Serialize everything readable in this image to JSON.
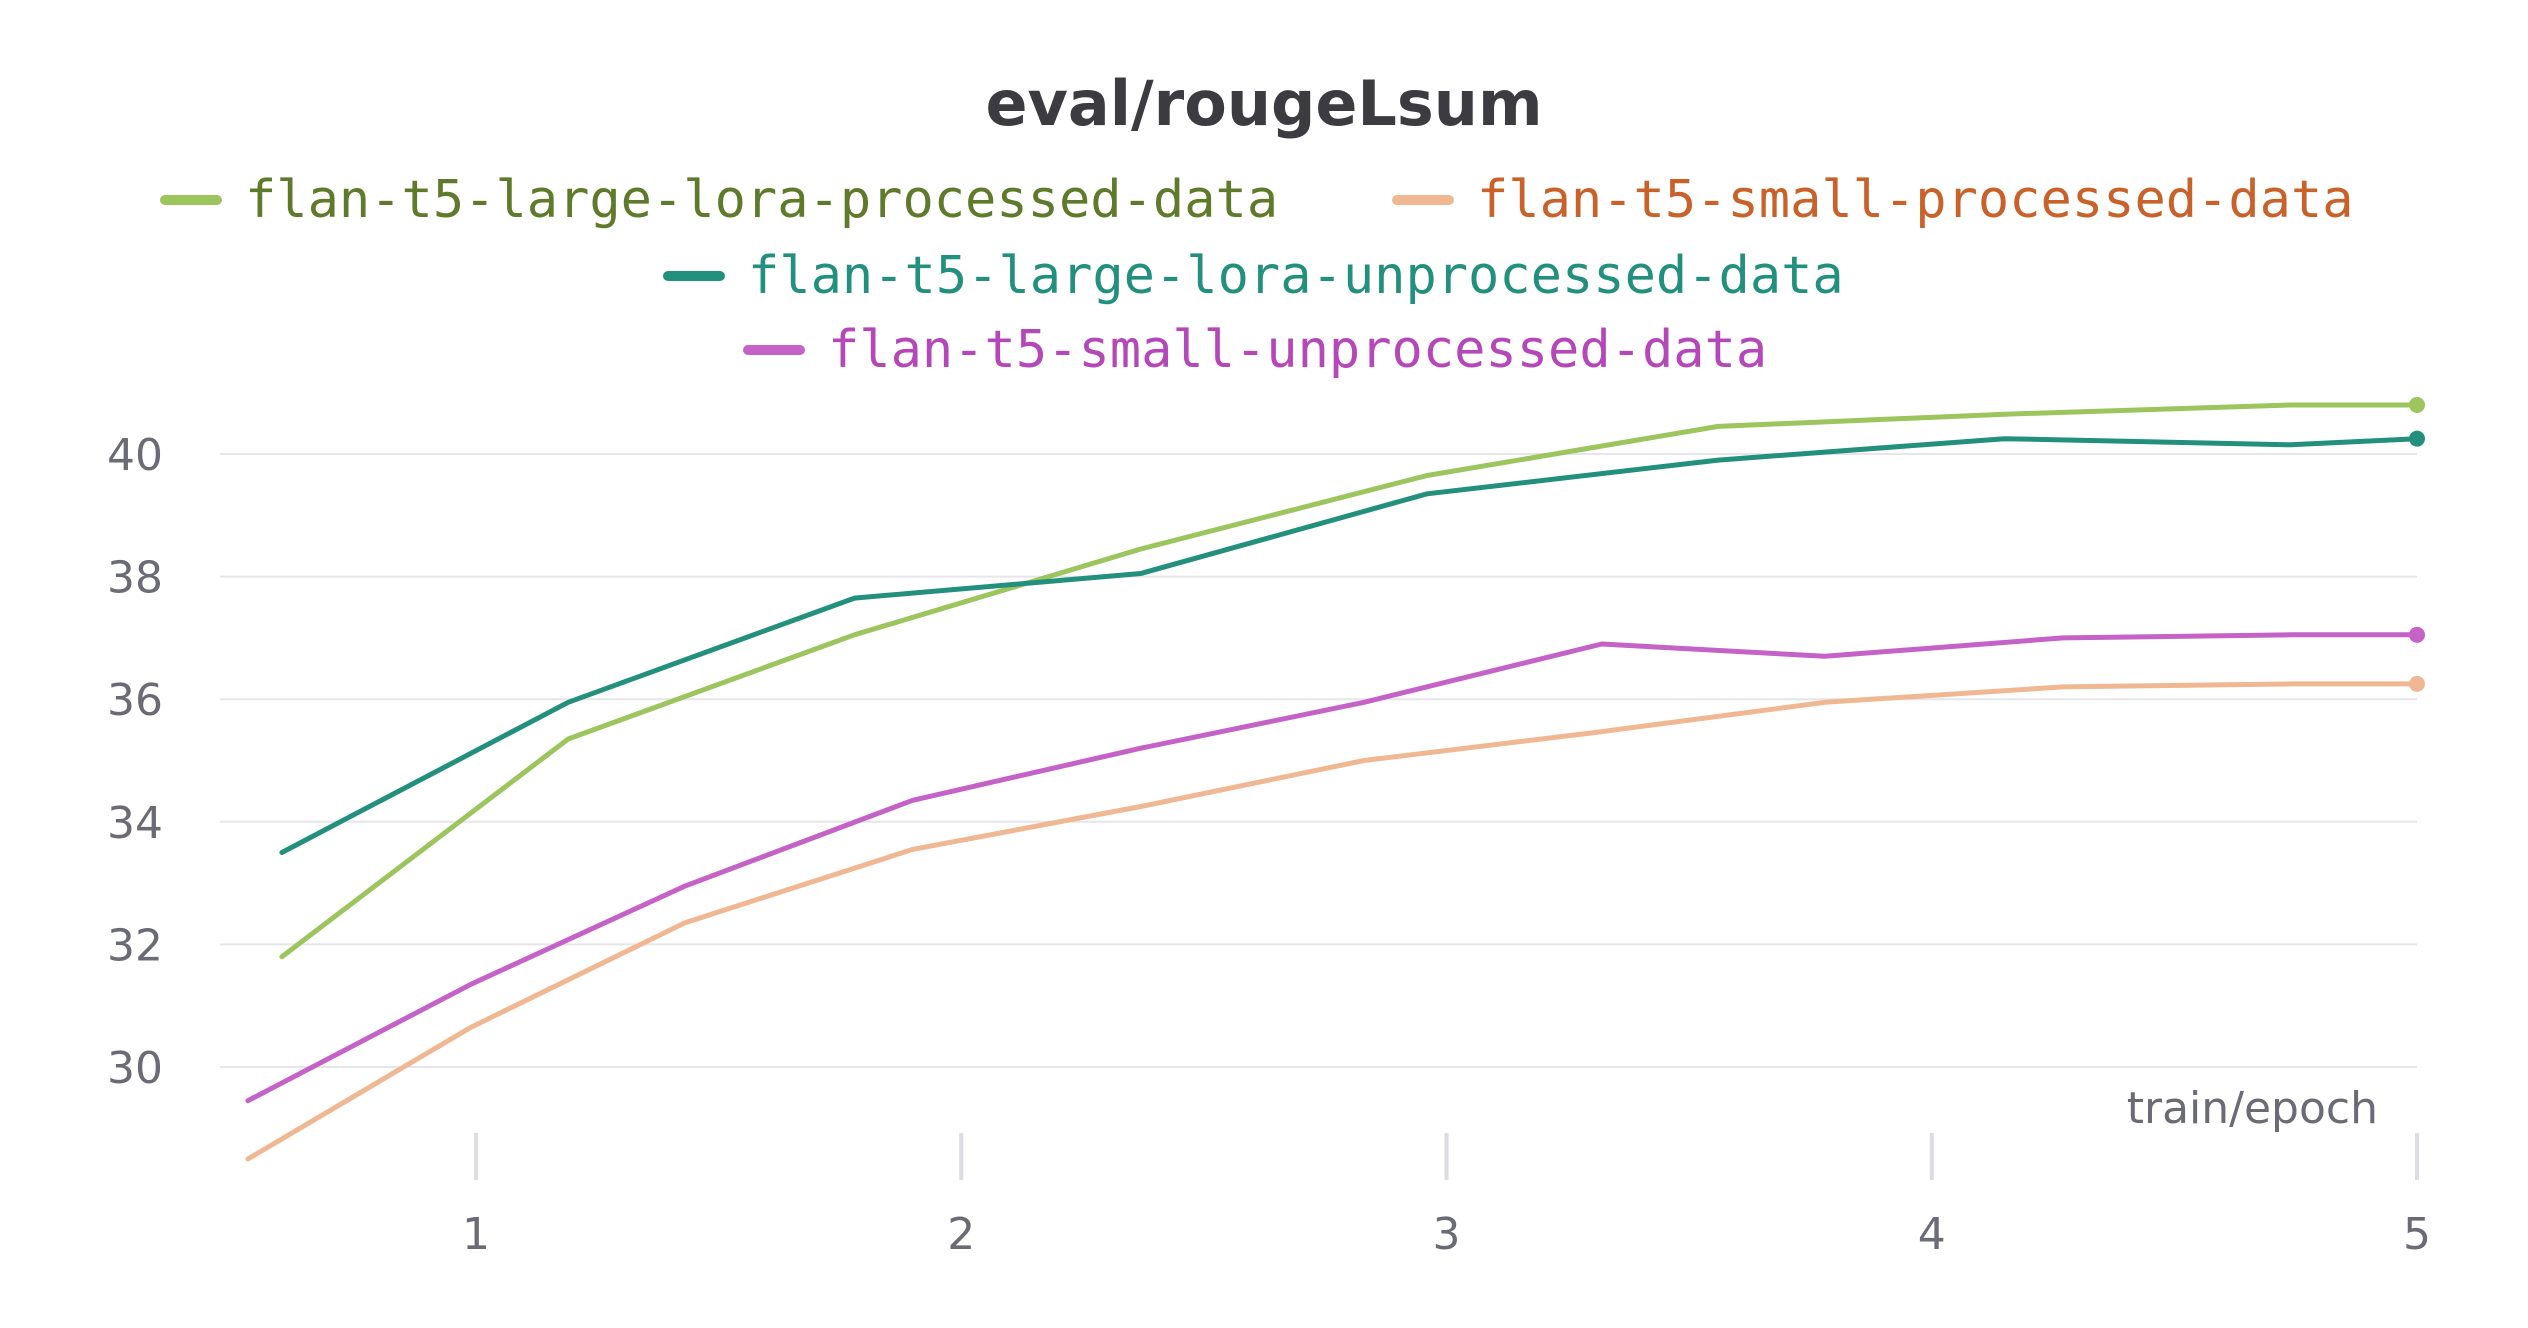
{
  "chart_data": {
    "type": "line",
    "title": "eval/rougeLsum",
    "xlabel": "train/epoch",
    "ylabel": "",
    "xlim": [
      0.47,
      5
    ],
    "ylim": [
      28.3,
      41.0
    ],
    "x_ticks": [
      1,
      2,
      3,
      4,
      5
    ],
    "y_ticks": [
      30,
      32,
      34,
      36,
      38,
      40
    ],
    "grid": "horizontal",
    "legend_position": "top",
    "series": [
      {
        "name": "flan-t5-large-lora-processed-data",
        "color": "#9cc55e",
        "text_color": "#5e7a2a",
        "x": [
          0.6,
          1.19,
          1.78,
          2.37,
          2.96,
          3.56,
          4.15,
          4.74,
          5.0
        ],
        "y": [
          31.8,
          35.35,
          37.05,
          38.45,
          39.65,
          40.45,
          40.65,
          40.8,
          40.8
        ]
      },
      {
        "name": "flan-t5-small-processed-data",
        "color": "#f0b793",
        "text_color": "#c9622a",
        "x": [
          0.53,
          0.99,
          1.43,
          1.9,
          2.37,
          2.83,
          3.3,
          3.78,
          4.27,
          4.74,
          5.0
        ],
        "y": [
          28.5,
          30.65,
          32.35,
          33.55,
          34.25,
          35.0,
          35.45,
          35.95,
          36.2,
          36.25,
          36.25
        ]
      },
      {
        "name": "flan-t5-large-lora-unprocessed-data",
        "color": "#23907e",
        "text_color": "#23907e",
        "x": [
          0.6,
          1.19,
          1.78,
          2.37,
          2.96,
          3.56,
          4.15,
          4.74,
          5.0
        ],
        "y": [
          33.5,
          35.95,
          37.65,
          38.05,
          39.35,
          39.9,
          40.25,
          40.15,
          40.25
        ]
      },
      {
        "name": "flan-t5-small-unprocessed-data",
        "color": "#c462c7",
        "text_color": "#b548b9",
        "x": [
          0.53,
          0.99,
          1.43,
          1.9,
          2.37,
          2.83,
          3.32,
          3.78,
          4.27,
          4.74,
          5.0
        ],
        "y": [
          29.45,
          31.35,
          32.95,
          34.35,
          35.2,
          35.95,
          36.9,
          36.7,
          37.0,
          37.05,
          37.05
        ]
      }
    ]
  }
}
